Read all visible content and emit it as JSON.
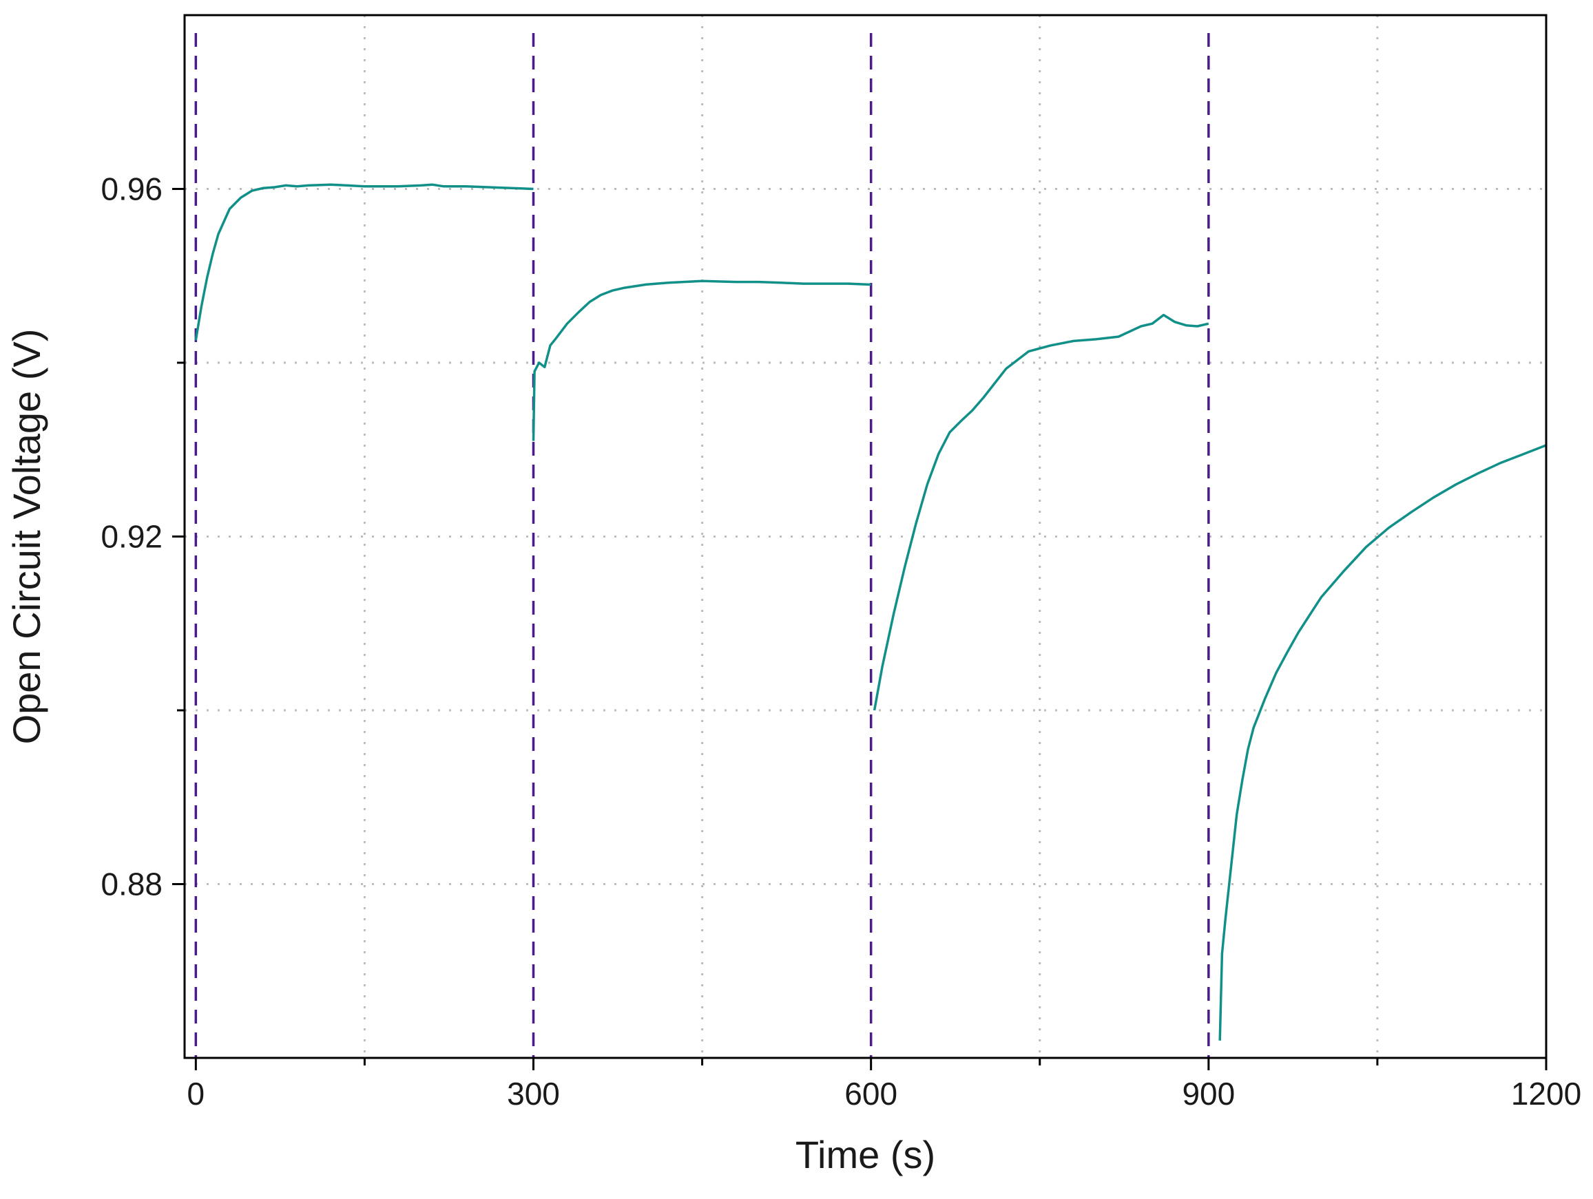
{
  "chart_data": {
    "type": "line",
    "xlabel": "Time (s)",
    "ylabel": "Open Circuit Voltage (V)",
    "xlim": [
      -10,
      1200
    ],
    "ylim": [
      0.86,
      0.98
    ],
    "x_ticks": [
      0,
      300,
      600,
      900,
      1200
    ],
    "x_tick_labels": [
      "0",
      "300",
      "600",
      "900",
      "1200"
    ],
    "x_minor_ticks": [
      150,
      450,
      750,
      1050
    ],
    "y_ticks": [
      0.88,
      0.92,
      0.96
    ],
    "y_tick_labels": [
      "0.88",
      "0.92",
      "0.96"
    ],
    "y_minor_ticks": [
      0.9,
      0.94
    ],
    "grid": true,
    "vlines": [
      0,
      300,
      600,
      900
    ],
    "colors": {
      "series": "#11908a",
      "vline": "#4b1a8c",
      "grid": "#bcbcbc",
      "axis": "#000000"
    },
    "series": [
      {
        "segment": 1,
        "x": [
          0,
          5,
          10,
          15,
          20,
          30,
          40,
          50,
          60,
          70,
          80,
          90,
          100,
          120,
          150,
          180,
          200,
          210,
          220,
          240,
          260,
          280,
          300
        ],
        "y": [
          0.9426,
          0.9465,
          0.9498,
          0.9525,
          0.9548,
          0.9577,
          0.959,
          0.9598,
          0.9601,
          0.9602,
          0.9604,
          0.9603,
          0.9604,
          0.9605,
          0.9603,
          0.9603,
          0.9604,
          0.9605,
          0.9603,
          0.9603,
          0.9602,
          0.9601,
          0.96
        ]
      },
      {
        "segment": 2,
        "x": [
          300,
          301,
          305,
          310,
          315,
          320,
          330,
          340,
          350,
          360,
          370,
          380,
          400,
          420,
          450,
          480,
          500,
          520,
          540,
          560,
          580,
          598,
          600
        ],
        "y": [
          0.931,
          0.939,
          0.94,
          0.9395,
          0.942,
          0.9428,
          0.9445,
          0.9458,
          0.947,
          0.9478,
          0.9483,
          0.9486,
          0.949,
          0.9492,
          0.9494,
          0.9493,
          0.9493,
          0.9492,
          0.9491,
          0.9491,
          0.9491,
          0.949,
          0.949
        ]
      },
      {
        "segment": 3,
        "x": [
          603,
          610,
          620,
          630,
          640,
          650,
          660,
          670,
          680,
          690,
          700,
          720,
          740,
          760,
          780,
          800,
          820,
          840,
          850,
          860,
          870,
          880,
          890,
          900
        ],
        "y": [
          0.9,
          0.905,
          0.911,
          0.9165,
          0.9215,
          0.926,
          0.9295,
          0.932,
          0.9333,
          0.9345,
          0.936,
          0.9393,
          0.9413,
          0.942,
          0.9425,
          0.9427,
          0.943,
          0.9442,
          0.9445,
          0.9455,
          0.9447,
          0.9443,
          0.9442,
          0.9445
        ]
      },
      {
        "segment": 4,
        "x": [
          910,
          912,
          915,
          920,
          925,
          930,
          935,
          940,
          950,
          960,
          970,
          980,
          1000,
          1020,
          1040,
          1060,
          1080,
          1100,
          1120,
          1140,
          1160,
          1180,
          1200
        ],
        "y": [
          0.862,
          0.872,
          0.876,
          0.882,
          0.888,
          0.892,
          0.8955,
          0.898,
          0.9013,
          0.9043,
          0.9067,
          0.909,
          0.913,
          0.916,
          0.9188,
          0.921,
          0.9228,
          0.9245,
          0.926,
          0.9273,
          0.9285,
          0.9295,
          0.9305
        ]
      }
    ]
  }
}
